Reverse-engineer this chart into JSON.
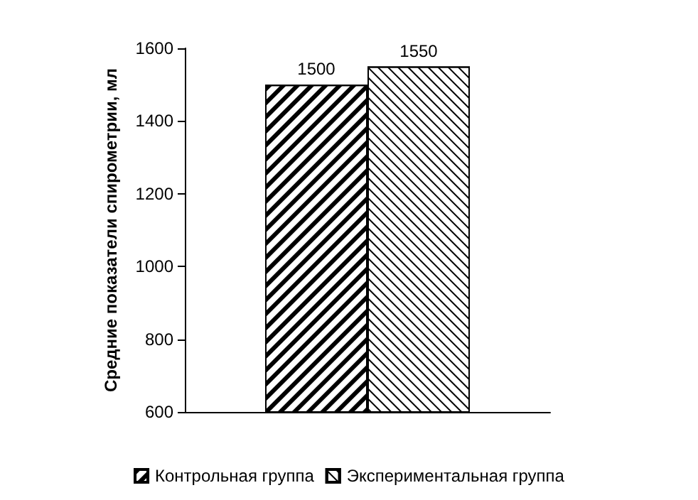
{
  "chart_data": {
    "type": "bar",
    "ylabel": "Средние показатели спирометрии, мл",
    "categories": [
      null
    ],
    "series": [
      {
        "name": "Контрольная группа",
        "color": "#000000",
        "values": [
          1500
        ]
      },
      {
        "name": "Экспериментальная группа",
        "color": "#000000",
        "values": [
          1550
        ]
      }
    ],
    "ylim": [
      600,
      1600
    ],
    "yticks": [
      600,
      800,
      1000,
      1200,
      1400,
      1600
    ],
    "data_labels": true,
    "grid": false,
    "legend": "bottom"
  }
}
